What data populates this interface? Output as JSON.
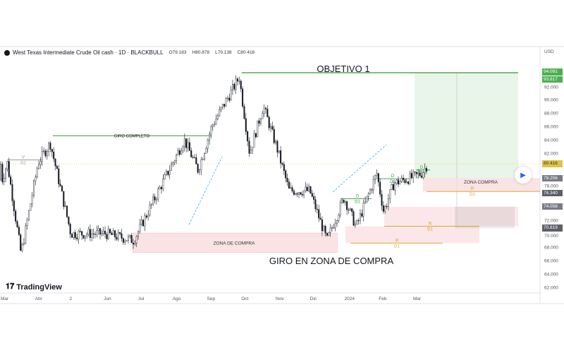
{
  "header": {
    "symbol": "West Texas Intermediate Crude Oil cash · 1D · BLACKBULL",
    "open": "O79.183",
    "high": "H80.878",
    "low": "L79.138",
    "close": "C80.416"
  },
  "brand": "TradingView",
  "currency": "USD",
  "play_icon": "play-icon",
  "colors": {
    "up": "#131722",
    "green": "#4caf50",
    "pink": "#f8d7da",
    "orange": "#d4a017",
    "last": "#e0c341"
  },
  "price_labels": [
    {
      "text": "94.091",
      "price": 94.091,
      "color": "#4caf50"
    },
    {
      "text": "93.817",
      "price": 93.817,
      "color": "#4caf50"
    },
    {
      "text": "80.416",
      "price": 80.416,
      "color": "#e0c341"
    },
    {
      "text": "78.256",
      "price": 78.256,
      "color": "#787b86"
    },
    {
      "text": "76.340",
      "price": 76.34,
      "color": "#5d606b"
    },
    {
      "text": "74.058",
      "price": 74.058,
      "color": "#787b86"
    },
    {
      "text": "70.819",
      "price": 70.819,
      "color": "#5d606b"
    }
  ],
  "chart_data": {
    "type": "candlestick",
    "title": "West Texas Intermediate Crude Oil cash · 1D · BLACKBULL",
    "ylim": [
      61,
      96
    ],
    "y_ticks": [
      "92.000",
      "90.000",
      "88.000",
      "86.000",
      "84.000",
      "82.000",
      "78.000",
      "72.000",
      "70.000",
      "68.000",
      "66.000",
      "64.000",
      "62.000"
    ],
    "y_tick_values": [
      92,
      90,
      88,
      86,
      84,
      82,
      78,
      72,
      70,
      68,
      66,
      64,
      62
    ],
    "x_ticks": [
      "Mar",
      "Abr",
      "2",
      "Jun",
      "Jul",
      "Ago",
      "Sep",
      "Oct",
      "Nov",
      "Dic",
      "2024",
      "Feb",
      "Mar"
    ],
    "price_path_month_index": [
      [
        0,
        78
      ],
      [
        0.15,
        80.6
      ],
      [
        0.55,
        67
      ],
      [
        1.05,
        80.6
      ],
      [
        1.4,
        83.5
      ],
      [
        2,
        70
      ],
      [
        3,
        70
      ],
      [
        3.83,
        69
      ],
      [
        4.66,
        77.5
      ],
      [
        5.3,
        84
      ],
      [
        5.7,
        79.5
      ],
      [
        6.1,
        86
      ],
      [
        6.9,
        93.3
      ],
      [
        7.2,
        82
      ],
      [
        7.6,
        89
      ],
      [
        8.0,
        82.7
      ],
      [
        8.35,
        76.4
      ],
      [
        8.95,
        76.4
      ],
      [
        9.45,
        69
      ],
      [
        9.95,
        75.4
      ],
      [
        10.3,
        71
      ],
      [
        10.6,
        75
      ],
      [
        10.9,
        79
      ],
      [
        11.1,
        73.3
      ],
      [
        11.4,
        77.5
      ],
      [
        12.0,
        78.5
      ],
      [
        12.2,
        79
      ],
      [
        12.39,
        80.4
      ]
    ],
    "annotations": [
      {
        "label": "OBJETIVO 1",
        "price": 94,
        "from": 6.95,
        "to": 15
      },
      {
        "label": "GIRO COMPLETO",
        "price": 84.6,
        "from": 1.45,
        "to": 6.1
      },
      {
        "label": "ZONA DE COMPRA",
        "price_top": 70.1,
        "price_bottom": 67.2,
        "from": 3.8,
        "to": 9.75
      },
      {
        "label": "GIRO EN ZONA DE COMPRA"
      },
      {
        "label": "ZONA COMPRA",
        "price_top": 78.3,
        "price_bottom": 76.3,
        "from": 12.3,
        "to": 15.7
      },
      {
        "label": "V",
        "sub": "D1",
        "price": 81
      },
      {
        "label": "D",
        "sub": "D1",
        "price": 75.2
      },
      {
        "label": "D",
        "sub": "D1",
        "price": 78.2
      },
      {
        "label": "D",
        "sub": "D1",
        "price": 79.5
      },
      {
        "label": "R",
        "sub": "D1",
        "price": 71.1
      },
      {
        "label": "R",
        "sub": "D1",
        "price": 68.6
      },
      {
        "label": "R",
        "sub": "D1",
        "price": 76.3
      }
    ]
  }
}
